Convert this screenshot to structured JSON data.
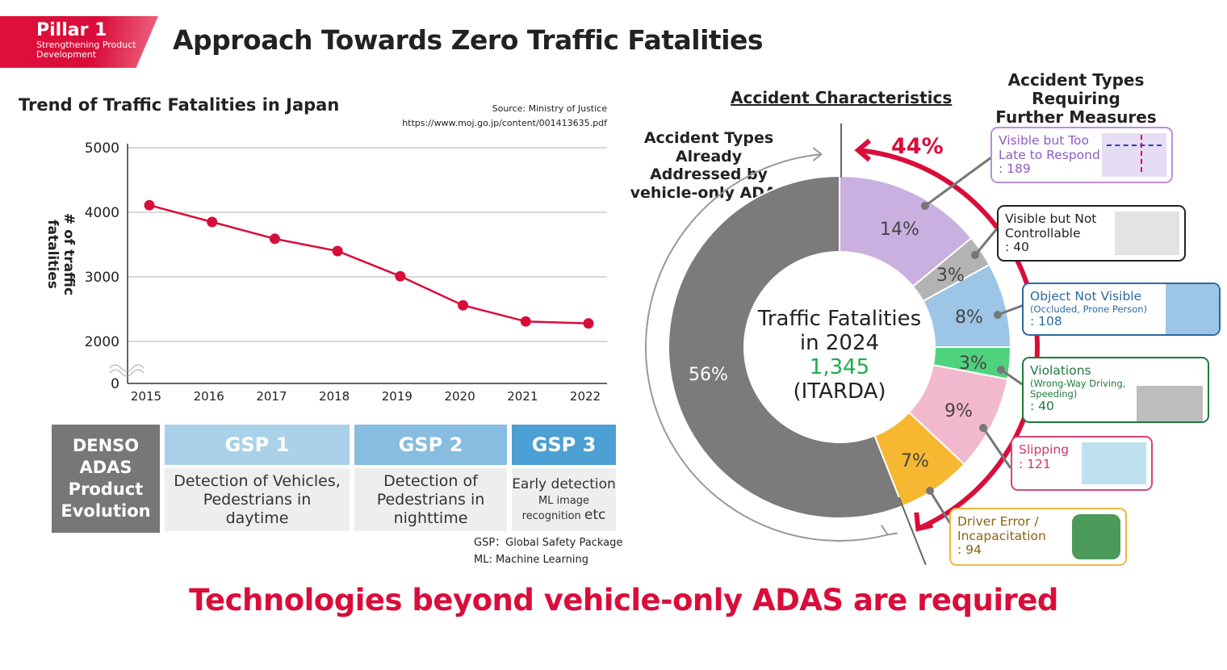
{
  "header": {
    "pillar": "Pillar 1",
    "pillar_sub1": "Strengthening Product",
    "pillar_sub2": "Development",
    "title": "Approach Towards Zero Traffic Fatalities"
  },
  "trend": {
    "title": "Trend of Traffic Fatalities in Japan",
    "source": "Source: Ministry of Justice",
    "source_url": "https://www.moj.go.jp/content/001413635.pdf"
  },
  "chart_data": [
    {
      "type": "line",
      "title": "Trend of Traffic Fatalities in Japan",
      "xlabel": "",
      "ylabel": "# of traffic fatalities",
      "categories": [
        "2015",
        "2016",
        "2017",
        "2018",
        "2019",
        "2020",
        "2021",
        "2022"
      ],
      "values": [
        4110,
        3850,
        3590,
        3400,
        3010,
        2560,
        2310,
        2280
      ],
      "yticks": [
        "0",
        "2000",
        "3000",
        "4000",
        "5000"
      ],
      "ylim": [
        2000,
        5000
      ],
      "axis_break": true,
      "grid": true,
      "color": "#d90d3a"
    },
    {
      "type": "pie",
      "donut": true,
      "center_title": "Traffic Fatalities",
      "center_year": "in 2024",
      "center_value": "1,345",
      "center_source": "(ITARDA)",
      "slices": [
        {
          "label": "14%",
          "value": 14,
          "color": "#c9b0e0",
          "category": "Visible but Too Late to Respond",
          "count": "189"
        },
        {
          "label": "3%",
          "value": 3,
          "color": "#b3b3b3",
          "category": "Visible but Not Controllable",
          "count": "40"
        },
        {
          "label": "8%",
          "value": 8,
          "color": "#9dc5e6",
          "category": "Object Not Visible",
          "count": "108"
        },
        {
          "label": "3%",
          "value": 3,
          "color": "#4fd37d",
          "category": "Violations",
          "count": "40"
        },
        {
          "label": "9%",
          "value": 9,
          "color": "#f2b8cd",
          "category": "Slipping",
          "count": "121"
        },
        {
          "label": "7%",
          "value": 7,
          "color": "#f6b731",
          "category": "Driver Error / Incapacitation",
          "count": "94"
        },
        {
          "label": "56%",
          "value": 56,
          "color": "#7b7b7b",
          "category": "Accident Types Already Addressed by vehicle-only ADAS"
        }
      ],
      "highlight_arc_label": "44%",
      "highlight_color": "#d90d3a"
    }
  ],
  "gsp": {
    "denso": "DENSO ADAS Product Evolution",
    "cols": [
      {
        "title": "GSP 1",
        "desc": [
          "Detection of Vehicles,",
          "Pedestrians in",
          "daytime"
        ],
        "color": "#a9d2ea"
      },
      {
        "title": "GSP 2",
        "desc": [
          "Detection of",
          "Pedestrians in",
          "nighttime"
        ],
        "color": "#86bde0"
      },
      {
        "title": "GSP 3",
        "desc_main": "Early detection",
        "desc_sub1": "ML image",
        "desc_sub2": "recognition",
        "desc_etc": "etc",
        "color": "#4da0d3"
      }
    ],
    "notes": [
      "GSP：Global Safety Package",
      "ML: Machine Learning"
    ]
  },
  "right": {
    "characteristics": "Accident Characteristics",
    "requiring": [
      "Accident Types Requiring",
      "Further Measures"
    ],
    "addressed": [
      "Accident Types Already",
      "Addressed by",
      "vehicle-only ADAS"
    ]
  },
  "callouts": [
    {
      "l1": "Visible but Too",
      "l2": "Late to Respond",
      "count": ": 189",
      "color": "#8f5cc2"
    },
    {
      "l1": "Visible but Not",
      "l2": "Controllable",
      "count": ": 40",
      "color": "#222222"
    },
    {
      "l1": "Object Not Visible",
      "sub": "(Occluded, Prone Person)",
      "count": ": 108",
      "color": "#2a6aa0"
    },
    {
      "l1": "Violations",
      "sub": "(Wrong-Way Driving,",
      "sub2": "Speeding)",
      "count": ": 40",
      "color": "#1e7a3c"
    },
    {
      "l1": "Slipping",
      "count": ": 121",
      "color": "#d6336c"
    },
    {
      "l1": "Driver Error /",
      "l2": "Incapacitation",
      "count": ": 94",
      "color": "#e9a820"
    }
  ],
  "conclusion": "Technologies beyond vehicle-only ADAS are required"
}
